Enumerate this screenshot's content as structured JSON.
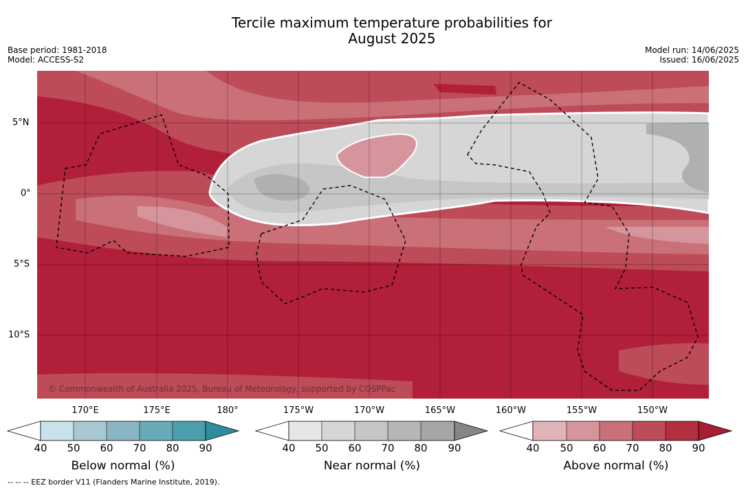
{
  "title_line1": "Tercile maximum temperature probabilities for",
  "title_line2": "August 2025",
  "meta": {
    "base_period": "Base period: 1981-2018",
    "model": "Model: ACCESS-S2",
    "model_run": "Model run: 14/06/2025",
    "issued": "Issued: 16/06/2025"
  },
  "lat_labels": [
    "5°N",
    "0°",
    "5°S",
    "10°S"
  ],
  "lon_labels": [
    "170°E",
    "175°E",
    "180°",
    "175°W",
    "170°W",
    "165°W",
    "160°W",
    "155°W",
    "150°W"
  ],
  "copyright": "© Commonwealth of Australia 2025, Bureau of Meteorology, supported by COSPPac",
  "colorbars": [
    {
      "title": "Below normal (%)",
      "ticks": [
        "40",
        "50",
        "60",
        "70",
        "80",
        "90"
      ],
      "colors": [
        "#ffffff",
        "#c9e1e8",
        "#a8c8d0",
        "#89b6c2",
        "#69aab9",
        "#4a9eae",
        "#2e8ea0"
      ]
    },
    {
      "title": "Near normal (%)",
      "ticks": [
        "40",
        "50",
        "60",
        "70",
        "80",
        "90"
      ],
      "colors": [
        "#ffffff",
        "#e6e6e6",
        "#d6d6d6",
        "#c6c6c6",
        "#b6b6b6",
        "#a6a6a6",
        "#868686"
      ]
    },
    {
      "title": "Above normal (%)",
      "ticks": [
        "40",
        "50",
        "60",
        "70",
        "80",
        "90"
      ],
      "colors": [
        "#ffffff",
        "#e0b4b8",
        "#d6959c",
        "#c97079",
        "#bd4b58",
        "#b32f40",
        "#a81d34"
      ]
    }
  ],
  "footnote": "--  --  -- EEZ border V11 (Flanders Marine Institute, 2019)."
}
